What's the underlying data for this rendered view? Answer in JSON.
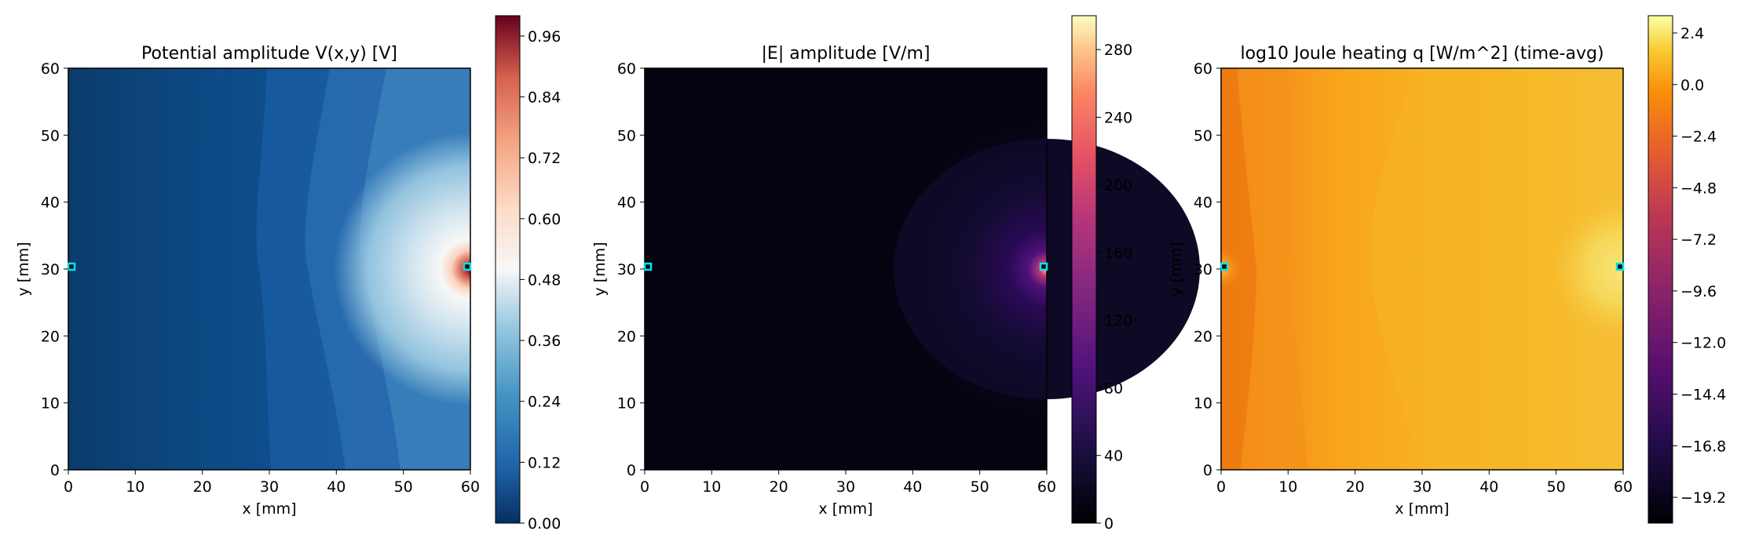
{
  "chart_data": [
    {
      "type": "heatmap",
      "title": "Potential amplitude V(x,y) [V]",
      "xlabel": "x [mm]",
      "ylabel": "y [mm]",
      "xlim": [
        0,
        60
      ],
      "ylim": [
        0,
        60
      ],
      "xticks": [
        "0",
        "10",
        "20",
        "30",
        "40",
        "50",
        "60"
      ],
      "yticks": [
        "0",
        "10",
        "20",
        "30",
        "40",
        "50",
        "60"
      ],
      "colormap": "RdBu_r",
      "colorbar": {
        "min": 0,
        "max": 1.0,
        "ticks": [
          "0.00",
          "0.12",
          "0.24",
          "0.36",
          "0.48",
          "0.60",
          "0.72",
          "0.84",
          "0.96"
        ]
      },
      "electrodes": [
        {
          "x": 0.5,
          "y": 30.5
        },
        {
          "x": 59.5,
          "y": 30.5
        }
      ],
      "electrode_color": "#00e5ee"
    },
    {
      "type": "heatmap",
      "title": "|E| amplitude [V/m]",
      "xlabel": "x [mm]",
      "ylabel": "y [mm]",
      "xlim": [
        0,
        60
      ],
      "ylim": [
        0,
        60
      ],
      "xticks": [
        "0",
        "10",
        "20",
        "30",
        "40",
        "50",
        "60"
      ],
      "yticks": [
        "0",
        "10",
        "20",
        "30",
        "40",
        "50",
        "60"
      ],
      "colormap": "magma",
      "colorbar": {
        "min": 0,
        "max": 300,
        "ticks": [
          "0",
          "40",
          "80",
          "120",
          "160",
          "200",
          "240",
          "280"
        ]
      },
      "electrodes": [
        {
          "x": 0.5,
          "y": 30.5
        },
        {
          "x": 59.5,
          "y": 30.5
        }
      ],
      "electrode_color": "#00e5ee"
    },
    {
      "type": "heatmap",
      "title": "log10  Joule heating  q [W/m^2]  (time-avg)",
      "xlabel": "x [mm]",
      "ylabel": "y [mm]",
      "xlim": [
        0,
        60
      ],
      "ylim": [
        0,
        60
      ],
      "xticks": [
        "0",
        "10",
        "20",
        "30",
        "40",
        "50",
        "60"
      ],
      "yticks": [
        "0",
        "10",
        "20",
        "30",
        "40",
        "50",
        "60"
      ],
      "colormap": "inferno",
      "colorbar": {
        "min": -20.4,
        "max": 3.2,
        "ticks": [
          "−19.2",
          "−16.8",
          "−14.4",
          "−12.0",
          "−9.6",
          "−7.2",
          "−4.8",
          "−2.4",
          "0.0",
          "2.4"
        ]
      },
      "electrodes": [
        {
          "x": 0.5,
          "y": 30.5
        },
        {
          "x": 59.5,
          "y": 30.5
        }
      ],
      "electrode_color": "#00e5ee"
    }
  ]
}
